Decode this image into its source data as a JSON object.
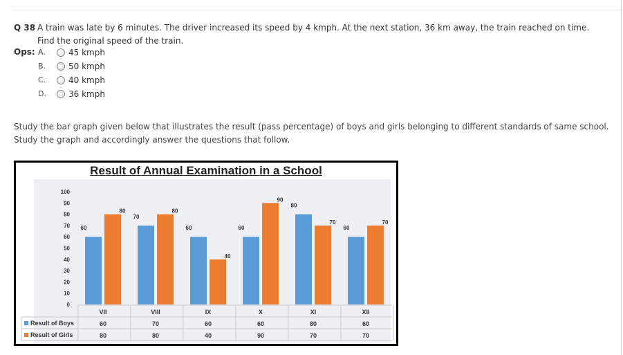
{
  "question": {
    "number": "Q 38",
    "text": "A train was late by 6 minutes. The driver increased its speed by 4 kmph. At the next station, 36 km away, the train reached on time. Find the original speed of the train.",
    "ops_label": "Ops:",
    "options": [
      {
        "letter": "A.",
        "text": "45 kmph"
      },
      {
        "letter": "B.",
        "text": "50 kmph"
      },
      {
        "letter": "C.",
        "text": "40 kmph"
      },
      {
        "letter": "D.",
        "text": "36 kmph"
      }
    ]
  },
  "passage": {
    "text": "Study the bar graph given below that illustrates the result (pass percentage) of boys and girls belonging to different standards of same school. Study the graph and accordingly answer the questions that follow."
  },
  "chart_data": {
    "type": "bar",
    "title": "Result of Annual Examination in a School",
    "categories": [
      "VII",
      "VIII",
      "IX",
      "X",
      "XI",
      "XII"
    ],
    "series": [
      {
        "name": "Result of Boys",
        "values": [
          60,
          70,
          60,
          60,
          80,
          60
        ],
        "color": "#5b9bd5"
      },
      {
        "name": "Result of Girls",
        "values": [
          80,
          80,
          40,
          90,
          70,
          70
        ],
        "color": "#ed7d31"
      }
    ],
    "ylim": [
      0,
      100
    ],
    "yticks": [
      0,
      10,
      20,
      30,
      40,
      50,
      60,
      70,
      80,
      90,
      100
    ],
    "grid": false,
    "legend": "data-table"
  }
}
